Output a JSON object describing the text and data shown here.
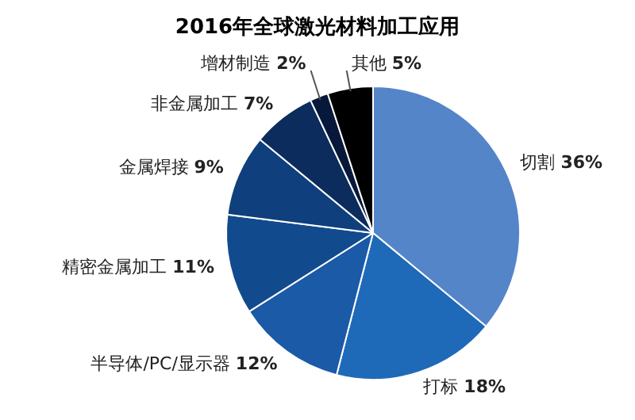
{
  "chart_data": {
    "type": "pie",
    "title": "2016年全球激光材料加工应用",
    "categories": [
      "切割",
      "打标",
      "半导体/PC/显示器",
      "精密金属加工",
      "金属焊接",
      "非金属加工",
      "增材制造",
      "其他"
    ],
    "values": [
      36,
      18,
      12,
      11,
      9,
      7,
      2,
      5
    ],
    "value_labels": [
      "36%",
      "18%",
      "12%",
      "11%",
      "9%",
      "7%",
      "2%",
      "5%"
    ],
    "colors": [
      "#5585c9",
      "#1f6ab8",
      "#1a5aa6",
      "#124a8e",
      "#0f3f7c",
      "#0b2c5c",
      "#08183a",
      "#000000"
    ],
    "legend": false
  }
}
